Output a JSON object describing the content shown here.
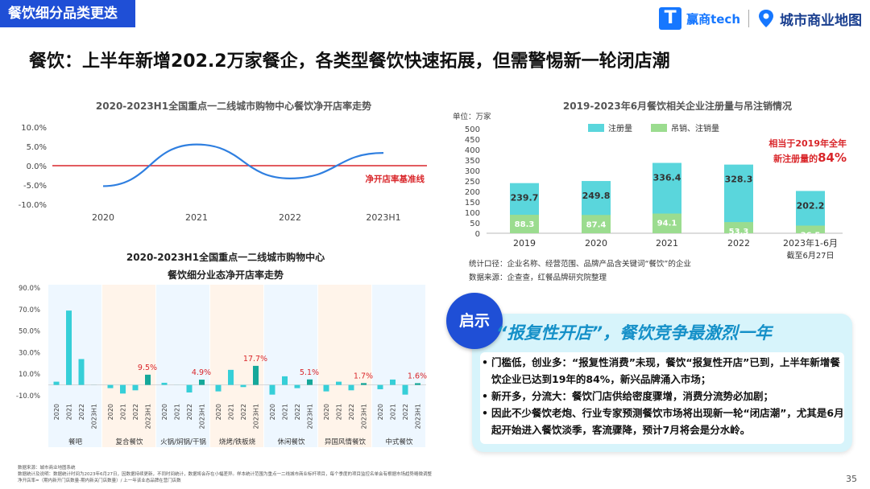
{
  "header": {
    "tag": "餐饮细分品类更迭",
    "logo1": "赢商tech",
    "logo2": "城市商业地图",
    "headline": "餐饮：上半年新增202.2万家餐企，各类型餐饮快速拓展，但需警惕新一轮闭店潮"
  },
  "colors": {
    "accent": "#1f4fd6",
    "cyan": "#5ad6dc",
    "green": "#9bdc8f",
    "red": "#d9262a",
    "line": "#2f7fe0"
  },
  "chart_data": [
    {
      "type": "line",
      "title": "2020-2023H1全国重点一二线城市购物中心餐饮净开店率走势",
      "categories": [
        "2020",
        "2021",
        "2022",
        "2023H1"
      ],
      "values": [
        -5.3,
        5.5,
        -3.3,
        3.3
      ],
      "ylabel_ticks": [
        "10.0%",
        "5.0%",
        "0.0%",
        "-5.0%",
        "-10.0%"
      ],
      "ylim": [
        -10,
        10
      ],
      "baseline_label": "净开店率基准线"
    },
    {
      "type": "bar",
      "title": "2019-2023年6月餐饮相关企业注册量与吊注销情况",
      "unit": "单位：万家",
      "categories": [
        "2019",
        "2020",
        "2021",
        "2022",
        "2023年1-6月"
      ],
      "category_sub": [
        "",
        "",
        "",
        "",
        "截至6月27日"
      ],
      "series": [
        {
          "name": "注册量",
          "values": [
            239.7,
            249.8,
            336.4,
            328.3,
            202.2
          ]
        },
        {
          "name": "吊销、注销量",
          "values": [
            88.3,
            87.4,
            94.1,
            53.3,
            36.5
          ]
        }
      ],
      "ylim": [
        0,
        500
      ],
      "yticks": [
        "0",
        "50",
        "100",
        "150",
        "200",
        "250",
        "300",
        "350",
        "400",
        "450",
        "500"
      ],
      "annotation_line1": "相当于2019年全年",
      "annotation_line2": "新注册量的",
      "annotation_pct": "84%"
    },
    {
      "type": "bar",
      "title_line1": "2020-2023H1全国重点一二线城市购物中心",
      "title_line2": "餐饮细分业态净开店率走势",
      "yticks": [
        "90.0%",
        "70.0%",
        "50.0%",
        "30.0%",
        "10.0%",
        "-10.0%"
      ],
      "ylim": [
        -10,
        90
      ],
      "periods": [
        "2020",
        "2021",
        "2022",
        "2023H1"
      ],
      "groups": [
        {
          "name": "餐吧",
          "values": [
            3,
            69,
            24,
            0
          ],
          "label": ""
        },
        {
          "name": "复合餐饮",
          "values": [
            -3,
            -8,
            -5,
            9.5
          ],
          "label": "9.5%"
        },
        {
          "name": "火锅/焖锅/干锅",
          "values": [
            2,
            0,
            -7,
            4.9
          ],
          "label": "4.9%"
        },
        {
          "name": "烧烤/铁板烧",
          "values": [
            -6,
            14,
            -2,
            17.7
          ],
          "label": "17.7%"
        },
        {
          "name": "休闲餐饮",
          "values": [
            -9,
            8,
            -3,
            5.1
          ],
          "label": "5.1%"
        },
        {
          "name": "异国风情餐饮",
          "values": [
            -6,
            3,
            -5,
            1.7
          ],
          "label": "1.7%"
        },
        {
          "name": "中式餐饮",
          "values": [
            -4,
            5,
            -9,
            1.6
          ],
          "label": "1.6%"
        }
      ]
    }
  ],
  "notes": {
    "note1": "统计口径：企业名称、经营范围、品牌产品含关键词“餐饮”的企业",
    "note2": "数据来源：企查查，红餐品牌研究院整理"
  },
  "insight": {
    "badge": "启示",
    "title": "“报复性开店”，餐饮竞争最激烈一年",
    "bullets": [
      "门槛低，创业多：“报复性消费”未现，餐饮“报复性开店”已到，上半年新增餐饮企业已达到19年的84%，新兴品牌涌入市场；",
      "新开多，分流大：餐饮门店供给密度骤增，消费分流势必加剧；",
      "因此不少餐饮老炮、行业专家预测餐饮市场将出现新一轮“闭店潮”，尤其是6月起开始进入餐饮淡季，客流骤降，预计7月将会是分水岭。"
    ]
  },
  "footer": {
    "source1": "数据来源：城市商业地图系统",
    "source2": "数据统计及说明：数据统计时间为2023年6月27日，因数据持续更新，不同时间统计，数据将会存在小幅差异。样本统计范围为重点一二线城市商业标杆项目，每个季度的项目监控名单会有根据市场趋势略微调整",
    "source3": "净开店率=（期内新开门店数量-期内新关门店数量）/ 上一年该业态品牌在营门店数",
    "page": "35"
  }
}
